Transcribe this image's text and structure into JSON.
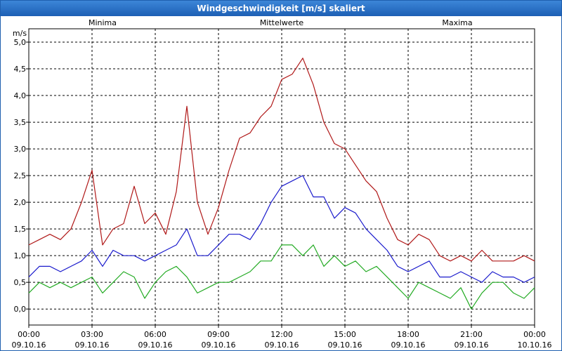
{
  "window": {
    "title": "Windgeschwindigkeit [m/s] skaliert"
  },
  "chart_data": {
    "type": "line",
    "title": "Windgeschwindigkeit [m/s] skaliert",
    "ylabel": "m/s",
    "xlabel": "",
    "ylim": [
      -0.3,
      5.25
    ],
    "xlim": [
      0,
      24
    ],
    "yticks": [
      0,
      0.5,
      1,
      1.5,
      2,
      2.5,
      3,
      3.5,
      4,
      4.5,
      5
    ],
    "ytick_labels": [
      "0,0",
      "0,5",
      "1,0",
      "1,5",
      "2,0",
      "2,5",
      "3,0",
      "3,5",
      "4,0",
      "4,5",
      "5,0"
    ],
    "xticks": [
      {
        "time": "00:00",
        "date": "09.10.16"
      },
      {
        "time": "03:00",
        "date": "09.10.16"
      },
      {
        "time": "06:00",
        "date": "09.10.16"
      },
      {
        "time": "09:00",
        "date": "09.10.16"
      },
      {
        "time": "12:00",
        "date": "09.10.16"
      },
      {
        "time": "15:00",
        "date": "09.10.16"
      },
      {
        "time": "18:00",
        "date": "09.10.16"
      },
      {
        "time": "21:00",
        "date": "09.10.16"
      },
      {
        "time": "00:00",
        "date": "10.10.16"
      }
    ],
    "grid": true,
    "legend": "top, above plot",
    "colors": {
      "Minima": "#22aa22",
      "Mittelwerte": "#1a1acc",
      "Maxima": "#b01818"
    },
    "series": [
      {
        "name": "Minima",
        "x": [
          0,
          0.5,
          1,
          1.5,
          2,
          2.5,
          3,
          3.5,
          4,
          4.5,
          5,
          5.5,
          6,
          6.5,
          7,
          7.5,
          8,
          8.5,
          9,
          9.5,
          10,
          10.5,
          11,
          11.5,
          12,
          12.5,
          13,
          13.5,
          14,
          14.5,
          15,
          15.5,
          16,
          16.5,
          17,
          17.5,
          18,
          18.5,
          19,
          19.5,
          20,
          20.5,
          21,
          21.5,
          22,
          22.5,
          23,
          23.5,
          24
        ],
        "values": [
          0.3,
          0.5,
          0.4,
          0.5,
          0.4,
          0.5,
          0.6,
          0.3,
          0.5,
          0.7,
          0.6,
          0.2,
          0.5,
          0.7,
          0.8,
          0.6,
          0.3,
          0.4,
          0.5,
          0.5,
          0.6,
          0.7,
          0.9,
          0.9,
          1.2,
          1.2,
          1.0,
          1.2,
          0.8,
          1.0,
          0.8,
          0.9,
          0.7,
          0.8,
          0.6,
          0.4,
          0.2,
          0.5,
          0.4,
          0.3,
          0.2,
          0.4,
          0.0,
          0.3,
          0.5,
          0.5,
          0.3,
          0.2,
          0.4
        ]
      },
      {
        "name": "Mittelwerte",
        "x": [
          0,
          0.5,
          1,
          1.5,
          2,
          2.5,
          3,
          3.5,
          4,
          4.5,
          5,
          5.5,
          6,
          6.5,
          7,
          7.5,
          8,
          8.5,
          9,
          9.5,
          10,
          10.5,
          11,
          11.5,
          12,
          12.5,
          13,
          13.5,
          14,
          14.5,
          15,
          15.5,
          16,
          16.5,
          17,
          17.5,
          18,
          18.5,
          19,
          19.5,
          20,
          20.5,
          21,
          21.5,
          22,
          22.5,
          23,
          23.5,
          24
        ],
        "values": [
          0.6,
          0.8,
          0.8,
          0.7,
          0.8,
          0.9,
          1.1,
          0.8,
          1.1,
          1.0,
          1.0,
          0.9,
          1.0,
          1.1,
          1.2,
          1.5,
          1.0,
          1.0,
          1.2,
          1.4,
          1.4,
          1.3,
          1.6,
          2.0,
          2.3,
          2.4,
          2.5,
          2.1,
          2.1,
          1.7,
          1.9,
          1.8,
          1.5,
          1.3,
          1.1,
          0.8,
          0.7,
          0.8,
          0.9,
          0.6,
          0.6,
          0.7,
          0.6,
          0.5,
          0.7,
          0.6,
          0.6,
          0.5,
          0.6
        ]
      },
      {
        "name": "Maxima",
        "x": [
          0,
          0.5,
          1,
          1.5,
          2,
          2.5,
          3,
          3.5,
          4,
          4.5,
          5,
          5.5,
          6,
          6.5,
          7,
          7.5,
          8,
          8.5,
          9,
          9.5,
          10,
          10.5,
          11,
          11.5,
          12,
          12.5,
          13,
          13.5,
          14,
          14.5,
          15,
          15.5,
          16,
          16.5,
          17,
          17.5,
          18,
          18.5,
          19,
          19.5,
          20,
          20.5,
          21,
          21.5,
          22,
          22.5,
          23,
          23.5,
          24
        ],
        "values": [
          1.2,
          1.3,
          1.4,
          1.3,
          1.5,
          2.0,
          2.6,
          1.2,
          1.5,
          1.6,
          2.3,
          1.6,
          1.8,
          1.4,
          2.2,
          3.8,
          2.0,
          1.4,
          1.9,
          2.6,
          3.2,
          3.3,
          3.6,
          3.8,
          4.3,
          4.4,
          4.7,
          4.2,
          3.5,
          3.1,
          3.0,
          2.7,
          2.4,
          2.2,
          1.7,
          1.3,
          1.2,
          1.4,
          1.3,
          1.0,
          0.9,
          1.0,
          0.9,
          1.1,
          0.9,
          0.9,
          0.9,
          1.0,
          0.9
        ]
      }
    ]
  }
}
